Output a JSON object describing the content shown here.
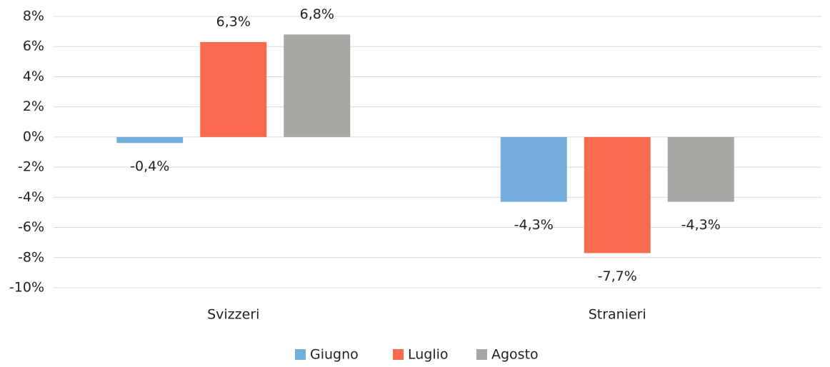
{
  "chart_data": {
    "type": "bar",
    "categories": [
      "Svizzeri",
      "Stranieri"
    ],
    "series": [
      {
        "name": "Giugno",
        "color": "#74afdc",
        "values": [
          -0.4,
          -4.3
        ],
        "value_labels": [
          "-0,4%",
          "-4,3%"
        ]
      },
      {
        "name": "Luglio",
        "color": "#fa6a4e",
        "values": [
          6.3,
          -7.7
        ],
        "value_labels": [
          "6,3%",
          "-7,7%"
        ]
      },
      {
        "name": "Agosto",
        "color": "#a6a8a4",
        "values": [
          6.8,
          -4.3
        ],
        "value_labels": [
          "6,8%",
          "-4,3%"
        ]
      }
    ],
    "ylim": [
      -10,
      8
    ],
    "yticks": [
      {
        "value": -10,
        "label": "-10%"
      },
      {
        "value": -8,
        "label": "-8%"
      },
      {
        "value": -6,
        "label": "-6%"
      },
      {
        "value": -4,
        "label": "-4%"
      },
      {
        "value": -2,
        "label": "-2%"
      },
      {
        "value": 0,
        "label": "0%"
      },
      {
        "value": 2,
        "label": "2%"
      },
      {
        "value": 4,
        "label": "4%"
      },
      {
        "value": 6,
        "label": "6%"
      },
      {
        "value": 8,
        "label": "8%"
      }
    ],
    "grid": true,
    "legend": "bottom"
  }
}
